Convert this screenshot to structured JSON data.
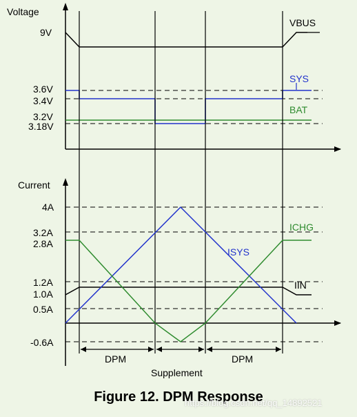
{
  "voltage_panel": {
    "axis_label": "Voltage",
    "ticks": [
      "9V",
      "3.6V",
      "3.4V",
      "3.2V",
      "3.18V"
    ],
    "signals": {
      "vbus": {
        "label": "VBUS",
        "color": "#000000"
      },
      "sys": {
        "label": "SYS",
        "color": "#2233cc"
      },
      "bat": {
        "label": "BAT",
        "color": "#2e8b2e"
      }
    }
  },
  "current_panel": {
    "axis_label": "Current",
    "ticks": [
      "4A",
      "3.2A",
      "2.8A",
      "1.2A",
      "1.0A",
      "0.5A",
      "-0.6A"
    ],
    "signals": {
      "ichg": {
        "label": "ICHG",
        "color": "#2e8b2e"
      },
      "isys": {
        "label": "ISYS",
        "color": "#2233cc"
      },
      "iin": {
        "label": "IIN",
        "color": "#000000"
      }
    }
  },
  "phases": [
    "DPM",
    "DPM",
    "Supplement"
  ],
  "caption": "Figure 12.  DPM Response",
  "watermark": "https://blog.csdn.net/qq_14892521"
}
